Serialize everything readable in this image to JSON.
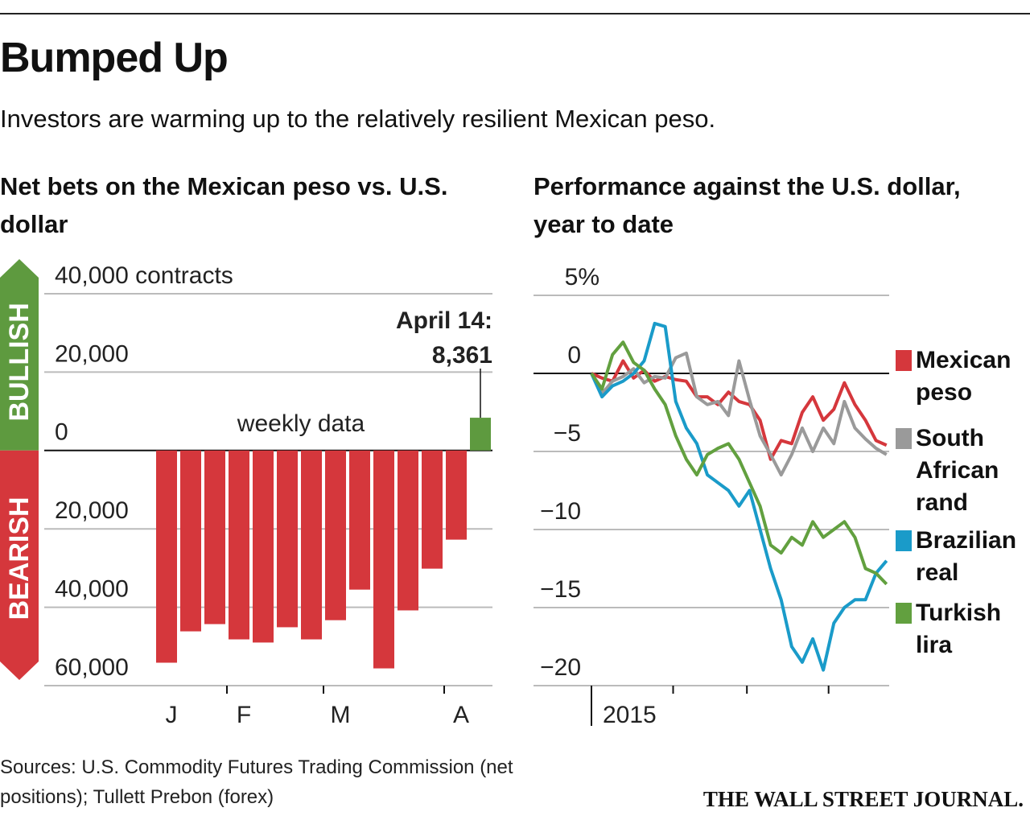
{
  "title": "Bumped Up",
  "subtitle": "Investors are warming up to the relatively resilient Mexican peso.",
  "source": "Sources: U.S. Commodity Futures Trading Commission (net positions); Tullett Prebon (forex)",
  "publisher": "THE WALL STREET JOURNAL.",
  "chart_data": [
    {
      "type": "bar",
      "title": "Net bets on the Mexican peso vs. U.S. dollar",
      "categories": [
        "J",
        null,
        null,
        "F",
        null,
        null,
        null,
        "M",
        null,
        null,
        null,
        null,
        "A",
        null
      ],
      "values": [
        -54150,
        -46150,
        -44300,
        -48200,
        -49000,
        -45100,
        -48200,
        -43300,
        -35500,
        -55600,
        -40800,
        -30150,
        -22750,
        8361
      ],
      "value_labels": [
        null,
        null,
        null,
        null,
        null,
        null,
        null,
        null,
        null,
        null,
        null,
        null,
        null,
        "8,361"
      ],
      "annotation": "April 14:",
      "note": "weekly data",
      "bullish_label": "BULLISH",
      "bearish_label": "BEARISH",
      "color": "#d5373c",
      "positive_color": "#5e9a3f",
      "ylim": [
        -60000,
        40000
      ],
      "yticks": [
        {
          "value": 40000,
          "label": "40,000 contracts"
        },
        {
          "value": 20000,
          "label": "20,000"
        },
        0,
        {
          "value": -20000,
          "label": "20,000"
        },
        {
          "value": -40000,
          "label": "40,000"
        },
        {
          "value": -60000,
          "label": "60,000"
        }
      ],
      "grid": true
    },
    {
      "type": "line",
      "title": "Performance against the U.S. dollar, year to date",
      "x": [
        0,
        4,
        8,
        12,
        16,
        20,
        24,
        28,
        32,
        36,
        40,
        44,
        48,
        52,
        56,
        60,
        64,
        68,
        72,
        76,
        80,
        84,
        88,
        92,
        96,
        100,
        104,
        108,
        112
      ],
      "series": [
        {
          "name": "Mexican peso",
          "color": "#d5373c",
          "values": [
            0,
            -0.3,
            -0.5,
            0.8,
            -0.3,
            0.2,
            -0.5,
            -0.2,
            -0.4,
            -0.5,
            -1.5,
            -1.5,
            -2,
            -1.2,
            -1.8,
            -2,
            -3,
            -5.5,
            -4.3,
            -4.5,
            -2.5,
            -1.5,
            -3,
            -2.3,
            -0.6,
            -2,
            -3,
            -4.3,
            -4.6
          ]
        },
        {
          "name": "South African rand",
          "color": "#9a9a9a",
          "values": [
            0,
            -1.3,
            -0.5,
            -0.2,
            0.3,
            -0.6,
            -0.2,
            -0.3,
            1,
            1.3,
            -1.5,
            -2,
            -1.8,
            -2.7,
            0.8,
            -1.7,
            -4,
            -5.2,
            -6.5,
            -5.2,
            -3.5,
            -5,
            -3.5,
            -4.5,
            -1.8,
            -3.5,
            -4.2,
            -4.8,
            -5.2
          ]
        },
        {
          "name": "Brazilian real",
          "color": "#1a9bc9",
          "values": [
            0,
            -1.5,
            -0.8,
            -0.5,
            0,
            0.8,
            3.2,
            3,
            -1.8,
            -3.5,
            -4.5,
            -6.5,
            -7,
            -7.5,
            -8.5,
            -7.5,
            -10,
            -12.5,
            -14.5,
            -17.5,
            -18.5,
            -17,
            -19,
            -16,
            -15,
            -14.5,
            -14.5,
            -12.8,
            -12
          ]
        },
        {
          "name": "Turkish lira",
          "color": "#62a03f",
          "values": [
            0,
            -1,
            1.2,
            2,
            0.7,
            0.2,
            -1,
            -2,
            -4,
            -5.5,
            -6.5,
            -5.2,
            -4.8,
            -4.5,
            -5.5,
            -7,
            -8.5,
            -11,
            -11.5,
            -10.5,
            -11,
            -9.5,
            -10.5,
            -10,
            -9.5,
            -10.5,
            -12.5,
            -12.8,
            -13.5
          ]
        }
      ],
      "xlim": [
        0,
        113
      ],
      "xticks": [
        {
          "value": 0,
          "label": "2015"
        }
      ],
      "xminor_ticks": [
        31,
        59,
        90
      ],
      "ylim": [
        -20,
        5
      ],
      "yticks": [
        {
          "value": 5,
          "label": "5%"
        },
        0,
        {
          "value": -5,
          "label": "−5"
        },
        {
          "value": -10,
          "label": "−10"
        },
        {
          "value": -15,
          "label": "−15"
        },
        {
          "value": -20,
          "label": "−20"
        }
      ],
      "grid": true
    }
  ]
}
